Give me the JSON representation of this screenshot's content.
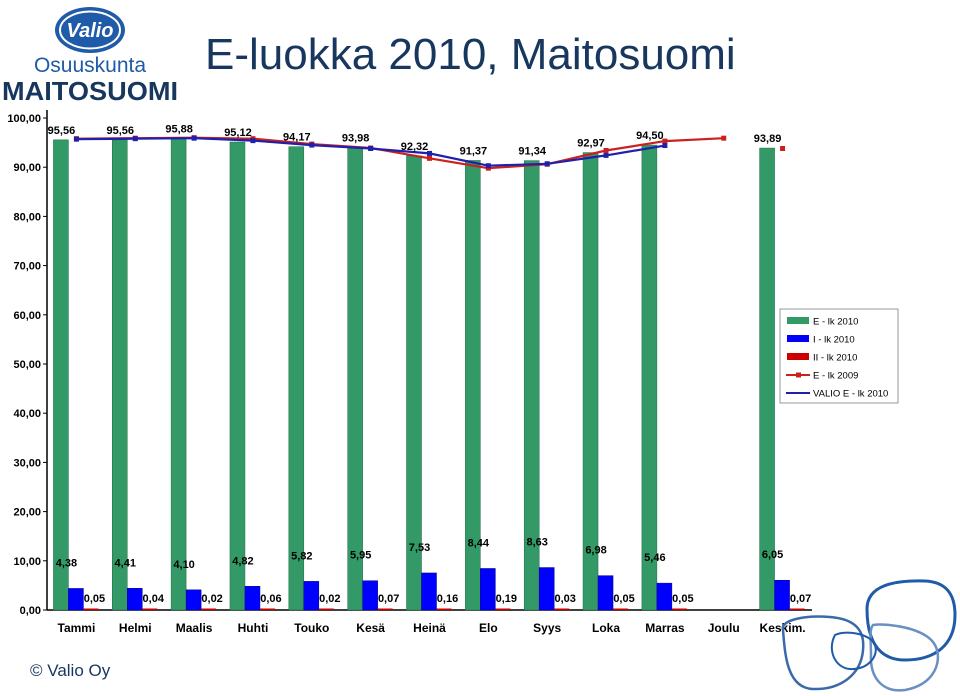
{
  "header": {
    "title": "E-luokka 2010, Maitosuomi",
    "logo_brand": "Valio",
    "logo_line1": "Osuuskunta",
    "logo_line2": "MAITOSUOMI"
  },
  "footer": {
    "copyright": "© Valio Oy"
  },
  "colors": {
    "e_luokka": "#339966",
    "i_luokka": "#0000ff",
    "ii_luokka": "#cc0000",
    "e_2009": "#cc2020",
    "valio_e": "#2020aa",
    "title": "#17375e"
  },
  "chart_data": {
    "type": "bar",
    "ylim": [
      0,
      100
    ],
    "yticks": [
      "0,00",
      "10,00",
      "20,00",
      "30,00",
      "40,00",
      "50,00",
      "60,00",
      "70,00",
      "80,00",
      "90,00",
      "100,00"
    ],
    "grid": false,
    "legend_position": "right",
    "categories": [
      "Tammi",
      "Helmi",
      "Maalis",
      "Huhti",
      "Touko",
      "Kesä",
      "Heinä",
      "Elo",
      "Syys",
      "Loka",
      "Marras",
      "Joulu",
      "Keskim."
    ],
    "series": [
      {
        "name": "E - lk 2010",
        "kind": "bar",
        "values": [
          95.56,
          95.56,
          95.88,
          95.12,
          94.17,
          93.98,
          92.32,
          91.37,
          91.34,
          92.97,
          94.5,
          null,
          93.89
        ],
        "labels": [
          "95,56",
          "95,56",
          "95,88",
          "95,12",
          "94,17",
          "93,98",
          "92,32",
          "91,37",
          "91,34",
          "92,97",
          "94,50",
          "",
          "93,89"
        ]
      },
      {
        "name": "I - lk 2010",
        "kind": "bar",
        "values": [
          4.38,
          4.41,
          4.1,
          4.82,
          5.82,
          5.95,
          7.53,
          8.44,
          8.63,
          6.98,
          5.46,
          null,
          6.05
        ],
        "labels": [
          "4,38",
          "4,41",
          "4,10",
          "4,82",
          "5,82",
          "5,95",
          "7,53",
          "8,44",
          "8,63",
          "6,98",
          "5,46",
          "",
          "6,05"
        ]
      },
      {
        "name": "II - lk 2010",
        "kind": "bar",
        "values": [
          0.05,
          0.04,
          0.02,
          0.06,
          0.02,
          0.07,
          0.16,
          0.19,
          0.03,
          0.05,
          0.05,
          null,
          0.07
        ],
        "labels": [
          "0,05",
          "0,04",
          "0,02",
          "0,06",
          "0,02",
          "0,07",
          "0,16",
          "0,19",
          "0,03",
          "0,05",
          "0,05",
          "",
          "0,07"
        ]
      },
      {
        "name": "E - lk 2009",
        "kind": "line",
        "values": [
          95.8,
          95.9,
          96.0,
          95.8,
          94.7,
          93.9,
          91.8,
          89.8,
          90.6,
          93.4,
          95.3,
          95.9,
          93.8
        ]
      },
      {
        "name": "VALIO E - lk 2010",
        "kind": "line",
        "values": [
          95.7,
          95.8,
          95.9,
          95.4,
          94.5,
          93.8,
          92.8,
          90.3,
          90.7,
          92.4,
          94.4,
          null,
          null
        ]
      }
    ]
  }
}
